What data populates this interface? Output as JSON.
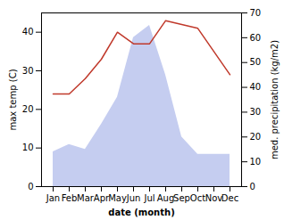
{
  "chart_data": {
    "type": "line",
    "xlabel": "date (month)",
    "ylabel": "max temp (C)",
    "y2label": "med. precipitation (kg/m2)",
    "categories": [
      "Jan",
      "Feb",
      "Mar",
      "Apr",
      "May",
      "Jun",
      "Jul",
      "Aug",
      "Sep",
      "Oct",
      "Nov",
      "Dec"
    ],
    "series": [
      {
        "type": "line",
        "color": "#c0392b",
        "values": [
          24,
          24,
          28,
          33,
          40,
          37,
          37,
          43,
          42,
          41,
          35,
          29
        ]
      },
      {
        "type": "area",
        "color": "#c5cdf0",
        "axis": "y2",
        "values": [
          14,
          17,
          15,
          25,
          36,
          60,
          65,
          45,
          20,
          13,
          13,
          13
        ]
      }
    ],
    "ylim": [
      0,
      45
    ],
    "yticks": [
      0,
      10,
      20,
      30,
      40
    ],
    "y2lim": [
      0,
      70
    ],
    "y2ticks": [
      0,
      10,
      20,
      30,
      40,
      50,
      60,
      70
    ],
    "grid": false
  }
}
